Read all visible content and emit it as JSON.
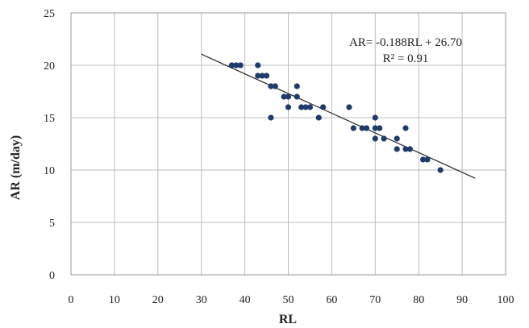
{
  "chart_data": {
    "type": "scatter",
    "xlabel": "RL",
    "ylabel": "AR (m/day)",
    "xlim": [
      0,
      100
    ],
    "ylim": [
      0,
      25
    ],
    "x_ticks": [
      "0",
      "10",
      "20",
      "30",
      "40",
      "50",
      "60",
      "70",
      "80",
      "90",
      "100"
    ],
    "y_ticks": [
      "0",
      "5",
      "10",
      "15",
      "20",
      "25"
    ],
    "grid": true,
    "marker_color": "#1f3b6b",
    "points": [
      {
        "x": 37,
        "y": 20
      },
      {
        "x": 38,
        "y": 20
      },
      {
        "x": 39,
        "y": 20
      },
      {
        "x": 43,
        "y": 20
      },
      {
        "x": 43,
        "y": 19
      },
      {
        "x": 44,
        "y": 19
      },
      {
        "x": 45,
        "y": 19
      },
      {
        "x": 46,
        "y": 18
      },
      {
        "x": 47,
        "y": 18
      },
      {
        "x": 46,
        "y": 15
      },
      {
        "x": 49,
        "y": 17
      },
      {
        "x": 50,
        "y": 17
      },
      {
        "x": 50,
        "y": 16
      },
      {
        "x": 52,
        "y": 18
      },
      {
        "x": 52,
        "y": 17
      },
      {
        "x": 53,
        "y": 16
      },
      {
        "x": 54,
        "y": 16
      },
      {
        "x": 55,
        "y": 16
      },
      {
        "x": 57,
        "y": 15
      },
      {
        "x": 58,
        "y": 16
      },
      {
        "x": 64,
        "y": 16
      },
      {
        "x": 65,
        "y": 14
      },
      {
        "x": 67,
        "y": 14
      },
      {
        "x": 68,
        "y": 14
      },
      {
        "x": 70,
        "y": 15
      },
      {
        "x": 70,
        "y": 14
      },
      {
        "x": 70,
        "y": 13
      },
      {
        "x": 71,
        "y": 14
      },
      {
        "x": 72,
        "y": 13
      },
      {
        "x": 75,
        "y": 13
      },
      {
        "x": 75,
        "y": 12
      },
      {
        "x": 77,
        "y": 14
      },
      {
        "x": 77,
        "y": 12
      },
      {
        "x": 78,
        "y": 12
      },
      {
        "x": 81,
        "y": 11
      },
      {
        "x": 82,
        "y": 11
      },
      {
        "x": 85,
        "y": 10
      }
    ],
    "trendline": {
      "equation": "AR= -0.188RL + 26.70",
      "r_squared": "R² = 0.91",
      "slope": -0.188,
      "intercept": 26.7,
      "x_range": [
        30,
        93
      ]
    }
  }
}
